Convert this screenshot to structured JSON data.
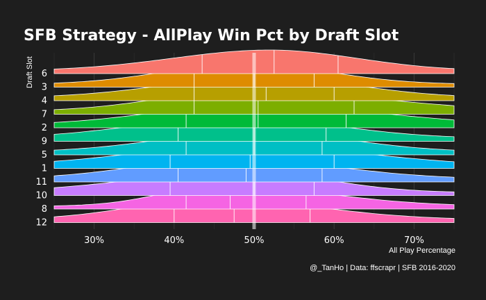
{
  "chart_data": {
    "type": "ridgeline",
    "title": "SFB Strategy - AllPlay Win Pct by Draft Slot",
    "xlabel": "All Play Percentage",
    "ylabel": "Draft Slot",
    "caption": "@_TanHo | Data: ffscrapr | SFB 2016-2020",
    "xlim": [
      25,
      75
    ],
    "x_ticks": [
      "30%",
      "40%",
      "50%",
      "60%",
      "70%"
    ],
    "x_tick_values": [
      30,
      40,
      50,
      60,
      70
    ],
    "reference_line": 50,
    "grid": true,
    "series": [
      {
        "name": "6",
        "color": "#f8766d",
        "quartiles": [
          43.5,
          52.5,
          60.5
        ],
        "peak": 52
      },
      {
        "name": "3",
        "color": "#de8c00",
        "quartiles": [
          42.5,
          50.0,
          57.5
        ],
        "peak": 49
      },
      {
        "name": "4",
        "color": "#b79f00",
        "quartiles": [
          42.5,
          51.5,
          60.0
        ],
        "peak": 51
      },
      {
        "name": "7",
        "color": "#7cae00",
        "quartiles": [
          42.5,
          50.5,
          62.5
        ],
        "peak": 49
      },
      {
        "name": "2",
        "color": "#00ba38",
        "quartiles": [
          41.5,
          50.5,
          61.5
        ],
        "peak": 50
      },
      {
        "name": "9",
        "color": "#00c08b",
        "quartiles": [
          40.5,
          50.0,
          59.0
        ],
        "peak": 48
      },
      {
        "name": "5",
        "color": "#00bfc4",
        "quartiles": [
          41.5,
          50.0,
          58.5
        ],
        "peak": 50
      },
      {
        "name": "1",
        "color": "#00b4f0",
        "quartiles": [
          39.5,
          49.5,
          60.0
        ],
        "peak": 49
      },
      {
        "name": "11",
        "color": "#619cff",
        "quartiles": [
          40.5,
          49.0,
          58.5
        ],
        "peak": 47
      },
      {
        "name": "10",
        "color": "#c77cff",
        "quartiles": [
          39.5,
          50.0,
          57.5
        ],
        "peak": 49
      },
      {
        "name": "8",
        "color": "#f564e3",
        "quartiles": [
          41.5,
          47.0,
          56.5
        ],
        "peak": 46
      },
      {
        "name": "12",
        "color": "#ff64b0",
        "quartiles": [
          40.0,
          47.5,
          57.0
        ],
        "peak": 45
      }
    ]
  }
}
